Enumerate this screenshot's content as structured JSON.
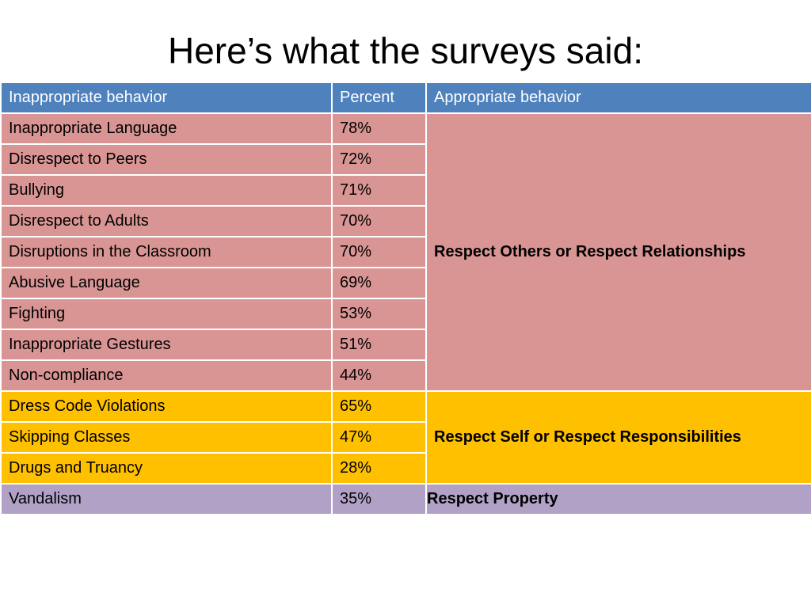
{
  "title": "Here’s what the surveys said:",
  "table": {
    "headers": [
      "Inappropriate behavior",
      "Percent",
      "Appropriate behavior"
    ],
    "groups": [
      {
        "appropriate": "Respect Others or Respect Relationships",
        "color": "#d99594",
        "rows": [
          {
            "behavior": "Inappropriate Language",
            "percent": "78%"
          },
          {
            "behavior": "Disrespect to Peers",
            "percent": "72%"
          },
          {
            "behavior": "Bullying",
            "percent": "71%"
          },
          {
            "behavior": "Disrespect to Adults",
            "percent": "70%"
          },
          {
            "behavior": "Disruptions in the Classroom",
            "percent": "70%"
          },
          {
            "behavior": "Abusive Language",
            "percent": "69%"
          },
          {
            "behavior": "Fighting",
            "percent": "53%"
          },
          {
            "behavior": "Inappropriate Gestures",
            "percent": "51%"
          },
          {
            "behavior": "Non-compliance",
            "percent": "44%"
          }
        ]
      },
      {
        "appropriate": "Respect Self or Respect Responsibilities",
        "color": "#ffc000",
        "rows": [
          {
            "behavior": "Dress Code Violations",
            "percent": "65%"
          },
          {
            "behavior": "Skipping Classes",
            "percent": "47%"
          },
          {
            "behavior": "Drugs and Truancy",
            "percent": "28%"
          }
        ]
      },
      {
        "appropriate": "Respect Property",
        "color": "#b2a1c7",
        "rows": [
          {
            "behavior": "Vandalism",
            "percent": "35%"
          }
        ]
      }
    ],
    "header_color": "#4f81bd"
  }
}
